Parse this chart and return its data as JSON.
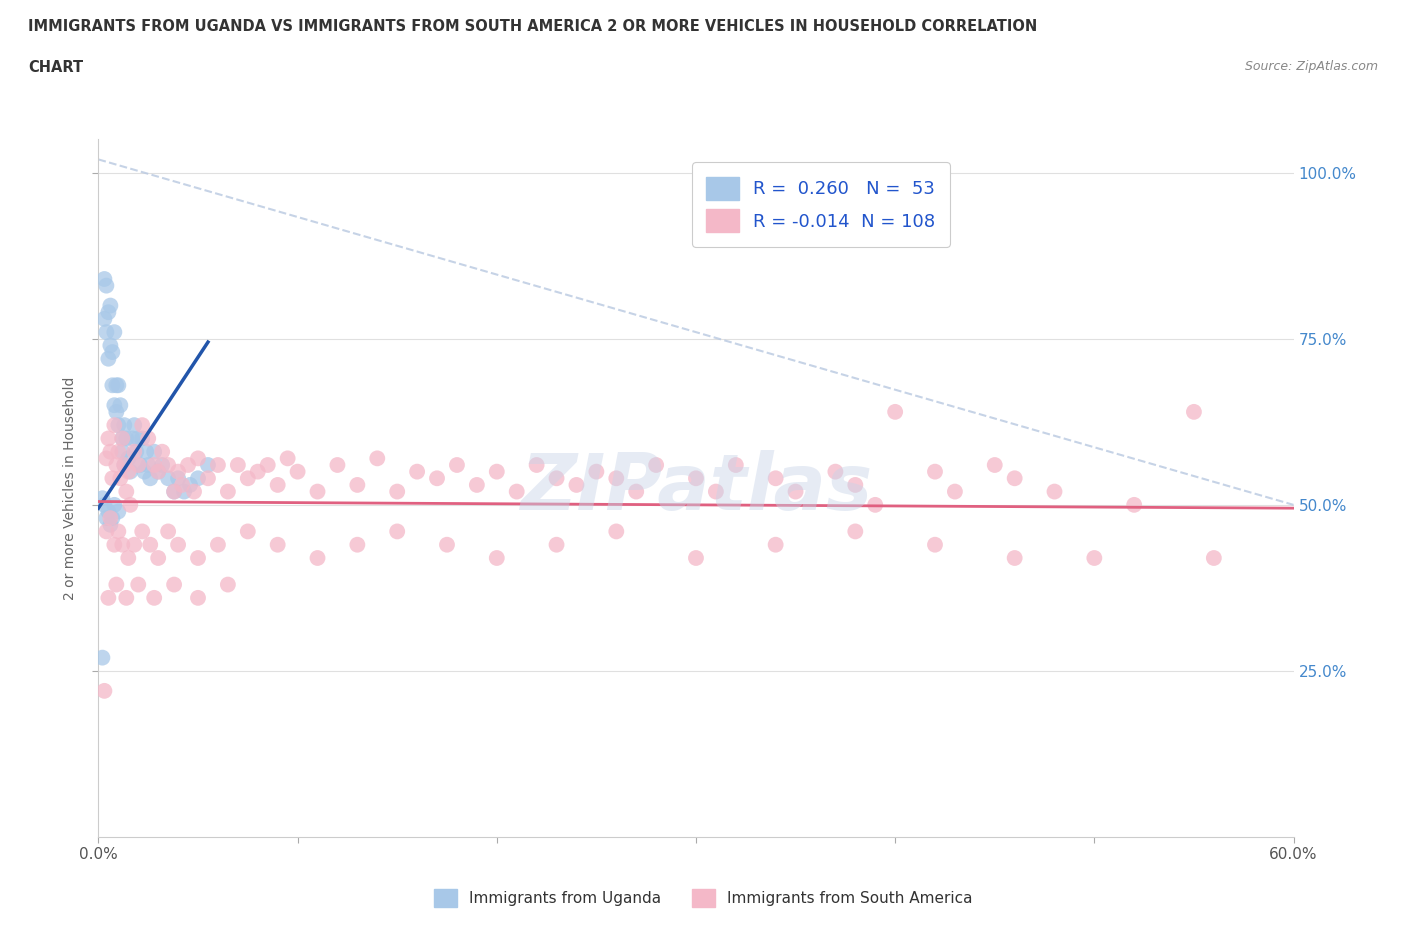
{
  "title_line1": "IMMIGRANTS FROM UGANDA VS IMMIGRANTS FROM SOUTH AMERICA 2 OR MORE VEHICLES IN HOUSEHOLD CORRELATION",
  "title_line2": "CHART",
  "source": "Source: ZipAtlas.com",
  "ylabel": "2 or more Vehicles in Household",
  "xlim": [
    0.0,
    0.6
  ],
  "ylim": [
    0.0,
    1.05
  ],
  "xtick_vals": [
    0.0,
    0.1,
    0.2,
    0.3,
    0.4,
    0.5,
    0.6
  ],
  "xtick_labels_bottom": [
    "0.0%",
    "",
    "",
    "",
    "",
    "",
    "60.0%"
  ],
  "ytick_vals": [
    0.25,
    0.5,
    0.75,
    1.0
  ],
  "ytick_labels": [
    "25.0%",
    "50.0%",
    "75.0%",
    "100.0%"
  ],
  "legend_labels": [
    "Immigrants from Uganda",
    "Immigrants from South America"
  ],
  "blue_R": 0.26,
  "blue_N": 53,
  "pink_R": -0.014,
  "pink_N": 108,
  "blue_color": "#a8c8e8",
  "pink_color": "#f4b8c8",
  "blue_line_color": "#2255aa",
  "pink_line_color": "#e06080",
  "diagonal_color": "#b8c8e0",
  "watermark": "ZIPatlas",
  "blue_scatter_x": [
    0.002,
    0.003,
    0.003,
    0.004,
    0.004,
    0.005,
    0.005,
    0.006,
    0.006,
    0.007,
    0.007,
    0.008,
    0.008,
    0.009,
    0.009,
    0.01,
    0.01,
    0.011,
    0.012,
    0.012,
    0.013,
    0.013,
    0.014,
    0.015,
    0.016,
    0.017,
    0.018,
    0.019,
    0.02,
    0.021,
    0.022,
    0.023,
    0.024,
    0.025,
    0.026,
    0.028,
    0.03,
    0.032,
    0.035,
    0.038,
    0.04,
    0.043,
    0.046,
    0.05,
    0.055,
    0.002,
    0.003,
    0.004,
    0.005,
    0.006,
    0.007,
    0.008,
    0.01
  ],
  "blue_scatter_y": [
    0.27,
    0.84,
    0.78,
    0.83,
    0.76,
    0.79,
    0.72,
    0.8,
    0.74,
    0.73,
    0.68,
    0.76,
    0.65,
    0.68,
    0.64,
    0.68,
    0.62,
    0.65,
    0.6,
    0.58,
    0.62,
    0.56,
    0.6,
    0.57,
    0.55,
    0.6,
    0.62,
    0.58,
    0.6,
    0.56,
    0.6,
    0.55,
    0.58,
    0.56,
    0.54,
    0.58,
    0.55,
    0.56,
    0.54,
    0.52,
    0.54,
    0.52,
    0.53,
    0.54,
    0.56,
    0.51,
    0.5,
    0.48,
    0.49,
    0.47,
    0.48,
    0.5,
    0.49
  ],
  "pink_scatter_x": [
    0.003,
    0.004,
    0.005,
    0.006,
    0.007,
    0.008,
    0.009,
    0.01,
    0.011,
    0.012,
    0.013,
    0.014,
    0.015,
    0.016,
    0.018,
    0.02,
    0.022,
    0.025,
    0.028,
    0.03,
    0.032,
    0.035,
    0.038,
    0.04,
    0.042,
    0.045,
    0.048,
    0.05,
    0.055,
    0.06,
    0.065,
    0.07,
    0.075,
    0.08,
    0.085,
    0.09,
    0.095,
    0.1,
    0.11,
    0.12,
    0.13,
    0.14,
    0.15,
    0.16,
    0.17,
    0.18,
    0.19,
    0.2,
    0.21,
    0.22,
    0.23,
    0.24,
    0.25,
    0.26,
    0.27,
    0.28,
    0.3,
    0.31,
    0.32,
    0.34,
    0.35,
    0.37,
    0.38,
    0.39,
    0.4,
    0.42,
    0.43,
    0.45,
    0.46,
    0.48,
    0.5,
    0.52,
    0.55,
    0.56,
    0.004,
    0.006,
    0.008,
    0.01,
    0.012,
    0.015,
    0.018,
    0.022,
    0.026,
    0.03,
    0.035,
    0.04,
    0.05,
    0.06,
    0.075,
    0.09,
    0.11,
    0.13,
    0.15,
    0.175,
    0.2,
    0.23,
    0.26,
    0.3,
    0.34,
    0.38,
    0.42,
    0.46,
    0.005,
    0.009,
    0.014,
    0.02,
    0.028,
    0.038,
    0.05,
    0.065
  ],
  "pink_scatter_y": [
    0.22,
    0.57,
    0.6,
    0.58,
    0.54,
    0.62,
    0.56,
    0.58,
    0.54,
    0.6,
    0.56,
    0.52,
    0.55,
    0.5,
    0.58,
    0.56,
    0.62,
    0.6,
    0.56,
    0.55,
    0.58,
    0.56,
    0.52,
    0.55,
    0.53,
    0.56,
    0.52,
    0.57,
    0.54,
    0.56,
    0.52,
    0.56,
    0.54,
    0.55,
    0.56,
    0.53,
    0.57,
    0.55,
    0.52,
    0.56,
    0.53,
    0.57,
    0.52,
    0.55,
    0.54,
    0.56,
    0.53,
    0.55,
    0.52,
    0.56,
    0.54,
    0.53,
    0.55,
    0.54,
    0.52,
    0.56,
    0.54,
    0.52,
    0.56,
    0.54,
    0.52,
    0.55,
    0.53,
    0.5,
    0.64,
    0.55,
    0.52,
    0.56,
    0.54,
    0.52,
    0.42,
    0.5,
    0.64,
    0.42,
    0.46,
    0.48,
    0.44,
    0.46,
    0.44,
    0.42,
    0.44,
    0.46,
    0.44,
    0.42,
    0.46,
    0.44,
    0.42,
    0.44,
    0.46,
    0.44,
    0.42,
    0.44,
    0.46,
    0.44,
    0.42,
    0.44,
    0.46,
    0.42,
    0.44,
    0.46,
    0.44,
    0.42,
    0.36,
    0.38,
    0.36,
    0.38,
    0.36,
    0.38,
    0.36,
    0.38
  ]
}
